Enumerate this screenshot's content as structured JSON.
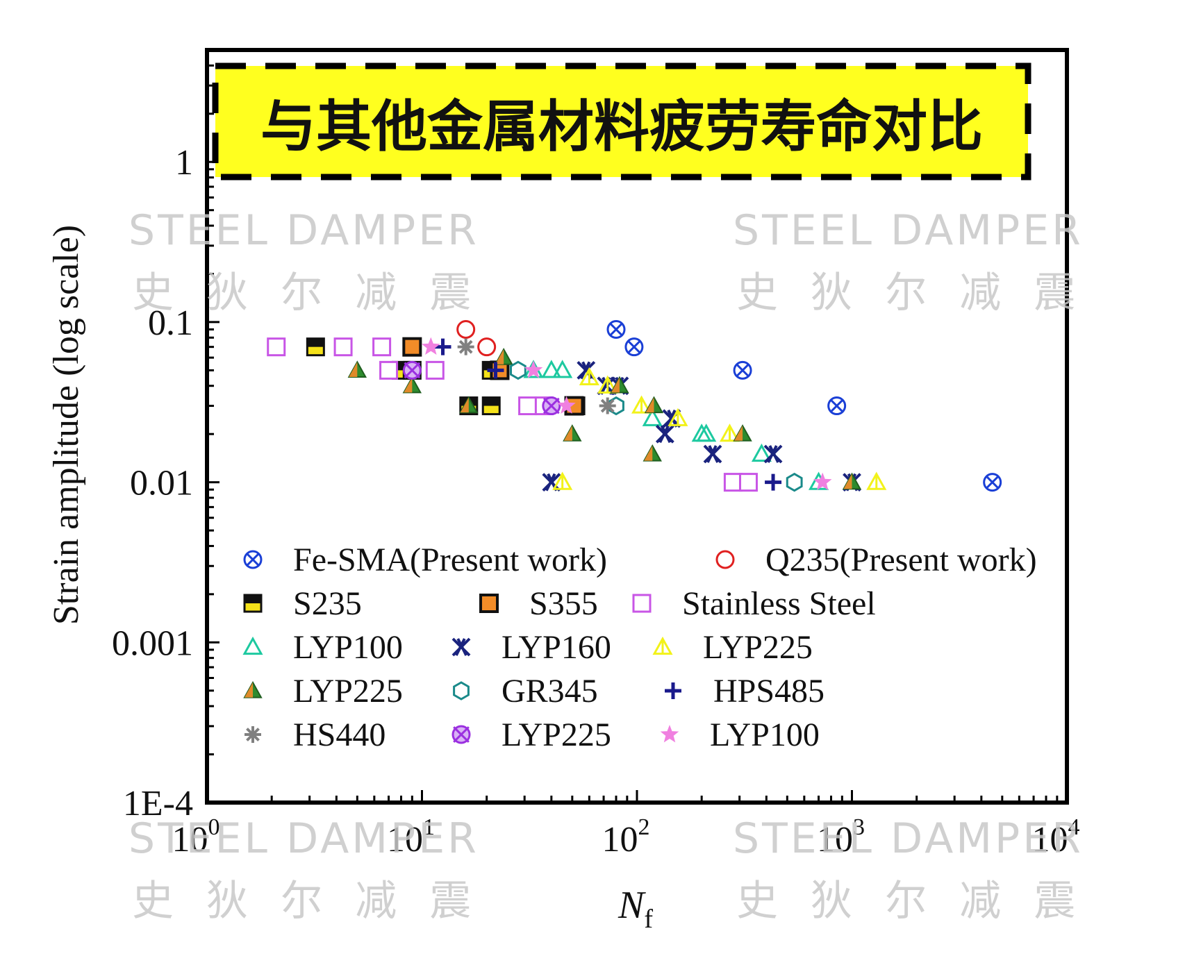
{
  "chart_data": {
    "type": "scatter",
    "title": "与其他金属材料疲劳寿命对比",
    "xlabel": "N",
    "xlabel_subscript": "f",
    "ylabel": "Strain amplitude (log scale)",
    "x_scale": "log",
    "y_scale": "log",
    "xlim": [
      1,
      10000
    ],
    "ylim": [
      0.0001,
      5
    ],
    "x_ticks": [
      {
        "value": 1,
        "base": "10",
        "exp": "0"
      },
      {
        "value": 10,
        "base": "10",
        "exp": "1"
      },
      {
        "value": 100,
        "base": "10",
        "exp": "2"
      },
      {
        "value": 1000,
        "base": "10",
        "exp": "3"
      },
      {
        "value": 10000,
        "base": "10",
        "exp": "4"
      }
    ],
    "y_ticks": [
      {
        "value": 1,
        "label": "1"
      },
      {
        "value": 0.1,
        "label": "0.1"
      },
      {
        "value": 0.01,
        "label": "0.01"
      },
      {
        "value": 0.001,
        "label": "0.001"
      },
      {
        "value": 0.0001,
        "label": "1E-4"
      }
    ],
    "grid": false,
    "legend_position": "bottom, inside plot",
    "series": [
      {
        "name": "Fe-SMA(Present work)",
        "marker": "circle-x",
        "color": "#1a3fd6",
        "points": [
          [
            80,
            0.09
          ],
          [
            97,
            0.07
          ],
          [
            310,
            0.05
          ],
          [
            850,
            0.03
          ],
          [
            4500,
            0.01
          ]
        ]
      },
      {
        "name": "Q235(Present work)",
        "marker": "circle-open",
        "color": "#e02020",
        "points": [
          [
            16,
            0.09
          ],
          [
            20,
            0.07
          ]
        ]
      },
      {
        "name": "S235",
        "marker": "square-half",
        "color": "#f5e21a",
        "points": [
          [
            3.2,
            0.07
          ],
          [
            8,
            0.05
          ],
          [
            9,
            0.05
          ],
          [
            16.5,
            0.03
          ],
          [
            21,
            0.03
          ],
          [
            21,
            0.05
          ],
          [
            52,
            0.03
          ]
        ]
      },
      {
        "name": "S355",
        "marker": "square-filled",
        "color": "#f28c28",
        "points": [
          [
            9,
            0.07
          ],
          [
            23,
            0.05
          ],
          [
            51,
            0.03
          ]
        ]
      },
      {
        "name": "Stainless Steel",
        "marker": "square-open",
        "color": "#c855e6",
        "points": [
          [
            2.1,
            0.07
          ],
          [
            4.3,
            0.07
          ],
          [
            6.5,
            0.07
          ],
          [
            7,
            0.05
          ],
          [
            11.5,
            0.05
          ],
          [
            31,
            0.03
          ],
          [
            37,
            0.03
          ],
          [
            280,
            0.01
          ],
          [
            330,
            0.01
          ]
        ]
      },
      {
        "name": "LYP100",
        "marker": "triangle-open",
        "color": "#1dc9a0",
        "points": [
          [
            33,
            0.05
          ],
          [
            40,
            0.05
          ],
          [
            45,
            0.05
          ],
          [
            118,
            0.025
          ],
          [
            200,
            0.02
          ],
          [
            210,
            0.02
          ],
          [
            380,
            0.015
          ],
          [
            700,
            0.01
          ]
        ]
      },
      {
        "name": "LYP160",
        "marker": "x-double",
        "color": "#1a237e",
        "points": [
          [
            40,
            0.01
          ],
          [
            58,
            0.05
          ],
          [
            72,
            0.04
          ],
          [
            83,
            0.04
          ],
          [
            135,
            0.02
          ],
          [
            145,
            0.025
          ],
          [
            225,
            0.015
          ],
          [
            430,
            0.015
          ],
          [
            1000,
            0.01
          ]
        ]
      },
      {
        "name": "LYP225",
        "marker": "triangle-line",
        "color": "#f2f21a",
        "points": [
          [
            45,
            0.01
          ],
          [
            60,
            0.045
          ],
          [
            73,
            0.04
          ],
          [
            105,
            0.03
          ],
          [
            155,
            0.025
          ],
          [
            270,
            0.02
          ],
          [
            1300,
            0.01
          ]
        ]
      },
      {
        "name": "LYP225",
        "marker": "triangle-filled",
        "color": "#2e8b2e",
        "points": [
          [
            5,
            0.05
          ],
          [
            9,
            0.04
          ],
          [
            16.5,
            0.03
          ],
          [
            24,
            0.06
          ],
          [
            50,
            0.02
          ],
          [
            83,
            0.04
          ],
          [
            118,
            0.015
          ],
          [
            120,
            0.03
          ],
          [
            310,
            0.02
          ],
          [
            1000,
            0.01
          ]
        ]
      },
      {
        "name": "GR345",
        "marker": "hexagon-open",
        "color": "#1a8a8a",
        "points": [
          [
            28,
            0.05
          ],
          [
            80,
            0.03
          ],
          [
            540,
            0.01
          ]
        ]
      },
      {
        "name": "HPS485",
        "marker": "plus",
        "color": "#1a1a8c",
        "points": [
          [
            12.5,
            0.07
          ],
          [
            22,
            0.05
          ],
          [
            430,
            0.01
          ]
        ]
      },
      {
        "name": "HS440",
        "marker": "asterisk",
        "color": "#808080",
        "points": [
          [
            16,
            0.07
          ],
          [
            73,
            0.03
          ]
        ]
      },
      {
        "name": "LYP225",
        "marker": "circle-x-filled",
        "color": "#9b30e0",
        "points": [
          [
            9,
            0.05
          ],
          [
            40,
            0.03
          ]
        ]
      },
      {
        "name": "LYP100",
        "marker": "star",
        "color": "#f080e0",
        "points": [
          [
            11,
            0.07
          ],
          [
            33,
            0.05
          ],
          [
            47,
            0.03
          ],
          [
            730,
            0.01
          ]
        ]
      }
    ]
  },
  "watermark": {
    "line1": "STEEL DAMPER",
    "line2": "史 狄 尔 减 震"
  }
}
